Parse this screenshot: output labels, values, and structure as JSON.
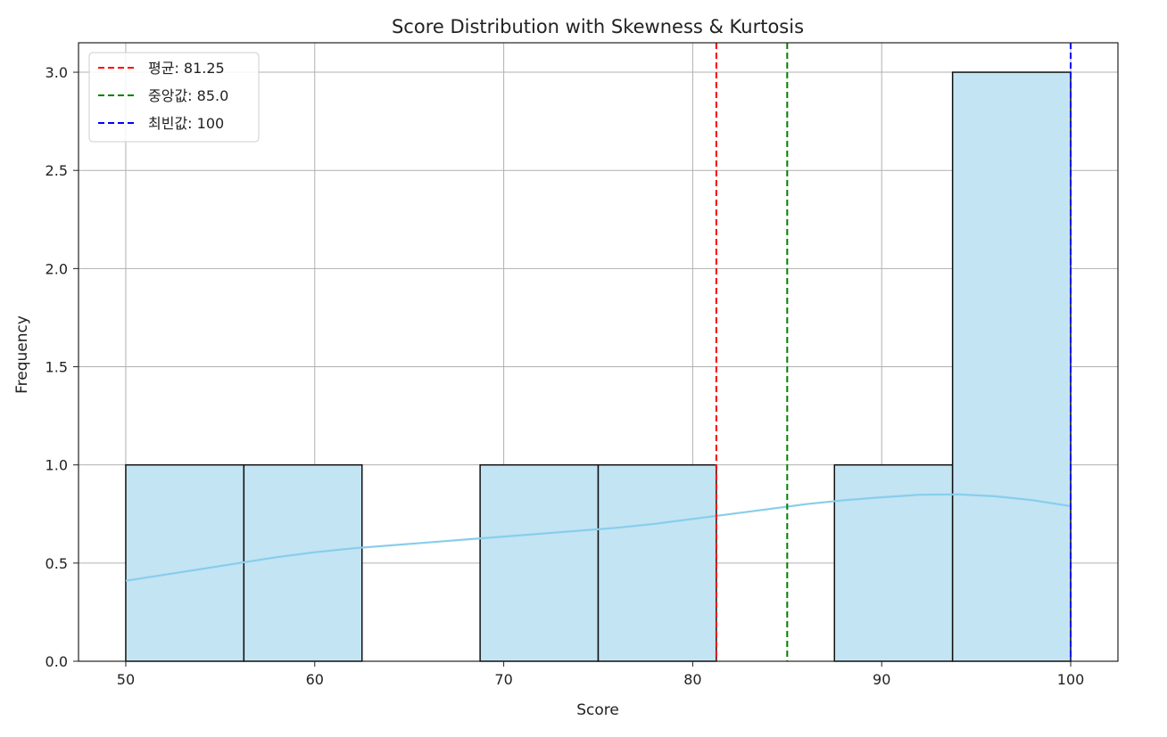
{
  "chart_data": {
    "type": "bar",
    "title": "Score Distribution with Skewness & Kurtosis",
    "xlabel": "Score",
    "ylabel": "Frequency",
    "xlim": [
      47.5,
      102.5
    ],
    "ylim": [
      0,
      3.15
    ],
    "xticks": [
      50,
      60,
      70,
      80,
      90,
      100
    ],
    "xtick_labels": [
      "50",
      "60",
      "70",
      "80",
      "90",
      "100"
    ],
    "yticks": [
      0,
      0.5,
      1.0,
      1.5,
      2.0,
      2.5,
      3.0
    ],
    "ytick_labels": [
      "0.0",
      "0.5",
      "1.0",
      "1.5",
      "2.0",
      "2.5",
      "3.0"
    ],
    "grid": true,
    "legend_position": "upper-left",
    "bins": [
      {
        "x0": 50.0,
        "x1": 56.25,
        "count": 1
      },
      {
        "x0": 56.25,
        "x1": 62.5,
        "count": 1
      },
      {
        "x0": 62.5,
        "x1": 68.75,
        "count": 0
      },
      {
        "x0": 68.75,
        "x1": 75.0,
        "count": 1
      },
      {
        "x0": 75.0,
        "x1": 81.25,
        "count": 1
      },
      {
        "x0": 81.25,
        "x1": 87.5,
        "count": 0
      },
      {
        "x0": 87.5,
        "x1": 93.75,
        "count": 1
      },
      {
        "x0": 93.75,
        "x1": 100.0,
        "count": 3
      }
    ],
    "kde": {
      "x": [
        50,
        52,
        54,
        56,
        58,
        60,
        62,
        64,
        66,
        68,
        70,
        72,
        74,
        76,
        78,
        80,
        82,
        84,
        86,
        88,
        90,
        92,
        94,
        96,
        98,
        100
      ],
      "y": [
        0.41,
        0.44,
        0.47,
        0.5,
        0.53,
        0.555,
        0.575,
        0.59,
        0.605,
        0.62,
        0.635,
        0.65,
        0.665,
        0.68,
        0.7,
        0.725,
        0.75,
        0.775,
        0.8,
        0.82,
        0.835,
        0.848,
        0.85,
        0.84,
        0.82,
        0.79
      ]
    },
    "reference_lines": [
      {
        "label": "평균: 81.25",
        "x": 81.25,
        "color": "#ff0000"
      },
      {
        "label": "중앙값: 85.0",
        "x": 85.0,
        "color": "#008000"
      },
      {
        "label": "최빈값: 100",
        "x": 100,
        "color": "#0000ff"
      }
    ],
    "colors": {
      "bar_fill": "#c3e4f3",
      "bar_edge": "#111111",
      "kde_line": "#87ceeb",
      "grid": "#b0b0b0"
    }
  }
}
